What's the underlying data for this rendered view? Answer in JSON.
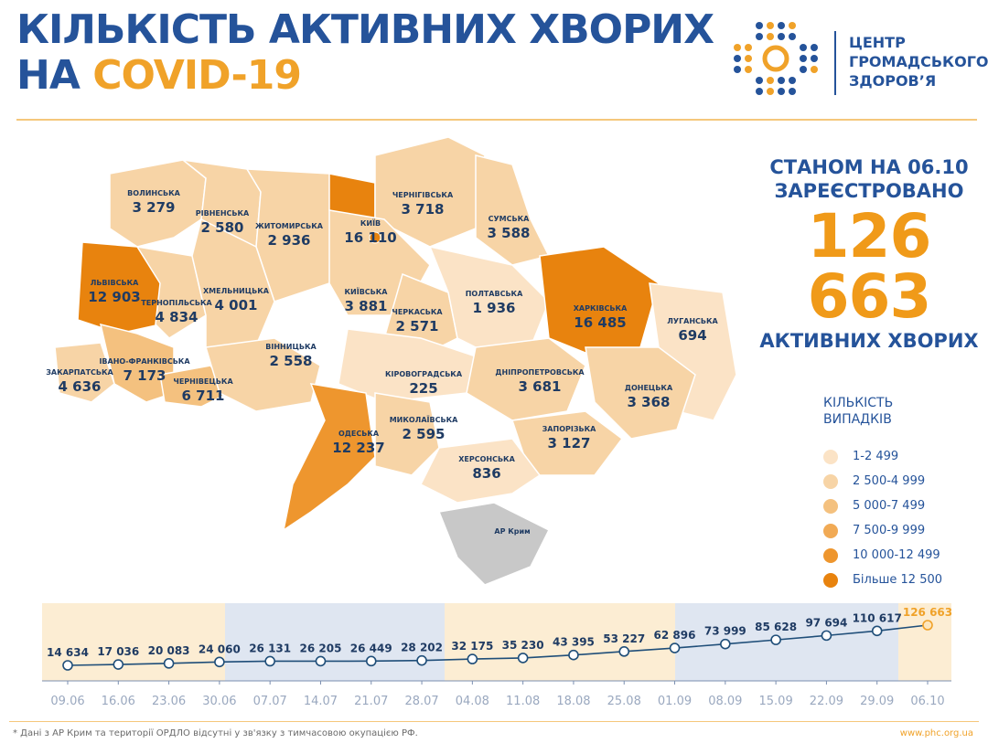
{
  "header": {
    "title_line1": "КІЛЬКІСТЬ АКТИВНИХ ХВОРИХ",
    "title_line2_prefix": "НА ",
    "title_line2_highlight": "COVID-19"
  },
  "logo": {
    "line1": "ЦЕНТР",
    "line2": "ГРОМАДСЬКОГО",
    "line3": "ЗДОРОВ’Я"
  },
  "summary": {
    "line1": "СТАНОМ НА 06.10",
    "line2": "ЗАРЕЄСТРОВАНО",
    "number": "126 663",
    "line3": "АКТИВНИХ ХВОРИХ"
  },
  "legend": {
    "title_line1": "КІЛЬКІСТЬ",
    "title_line2": "ВИПАДКІВ",
    "items": [
      {
        "label": "1-2 499",
        "color": "#fbe3c6"
      },
      {
        "label": "2 500-4 999",
        "color": "#f7d4a6"
      },
      {
        "label": "5 000-7 499",
        "color": "#f4c17f"
      },
      {
        "label": "7 500-9 999",
        "color": "#f1aa55"
      },
      {
        "label": "10 000-12 499",
        "color": "#ee962e"
      },
      {
        "label": "Більше 12 500",
        "color": "#e8830e"
      }
    ]
  },
  "regions": [
    {
      "name": "ВОЛИНСЬКА",
      "value": "3 279",
      "color": "#f7d4a6"
    },
    {
      "name": "РІВНЕНСЬКА",
      "value": "2 580",
      "color": "#f7d4a6"
    },
    {
      "name": "ЖИТОМИРСЬКА",
      "value": "2 936",
      "color": "#f7d4a6"
    },
    {
      "name": "КИЇВ",
      "value": "16 110",
      "color": "#e8830e"
    },
    {
      "name": "ЧЕРНІГІВСЬКА",
      "value": "3 718",
      "color": "#f7d4a6"
    },
    {
      "name": "СУМСЬКА",
      "value": "3 588",
      "color": "#f7d4a6"
    },
    {
      "name": "ЛЬВІВСЬКА",
      "value": "12 903",
      "color": "#e8830e"
    },
    {
      "name": "ТЕРНОПІЛЬСЬКА",
      "value": "4 834",
      "color": "#f7d4a6"
    },
    {
      "name": "ХМЕЛЬНИЦЬКА",
      "value": "4 001",
      "color": "#f7d4a6"
    },
    {
      "name": "КИЇВСЬКА",
      "value": "3 881",
      "color": "#f7d4a6"
    },
    {
      "name": "ЧЕРКАСЬКА",
      "value": "2 571",
      "color": "#f7d4a6"
    },
    {
      "name": "ПОЛТАВСЬКА",
      "value": "1 936",
      "color": "#fbe3c6"
    },
    {
      "name": "ХАРКІВСЬКА",
      "value": "16 485",
      "color": "#e8830e"
    },
    {
      "name": "ЛУГАНСЬКА",
      "value": "694",
      "color": "#fbe3c6"
    },
    {
      "name": "ІВАНО-ФРАНКІВСЬКА",
      "value": "7 173",
      "color": "#f4c17f"
    },
    {
      "name": "ЗАКАРПАТСЬКА",
      "value": "4 636",
      "color": "#f7d4a6"
    },
    {
      "name": "ЧЕРНІВЕЦЬКА",
      "value": "6 711",
      "color": "#f4c17f"
    },
    {
      "name": "ВІННИЦЬКА",
      "value": "2 558",
      "color": "#f7d4a6"
    },
    {
      "name": "КІРОВОГРАДСЬКА",
      "value": "225",
      "color": "#fbe3c6"
    },
    {
      "name": "ДНІПРОПЕТРОВСЬКА",
      "value": "3 681",
      "color": "#f7d4a6"
    },
    {
      "name": "ДОНЕЦЬКА",
      "value": "3 368",
      "color": "#f7d4a6"
    },
    {
      "name": "ОДЕСЬКА",
      "value": "12 237",
      "color": "#ee962e"
    },
    {
      "name": "МИКОЛАЇВСЬКА",
      "value": "2 595",
      "color": "#f7d4a6"
    },
    {
      "name": "ЗАПОРІЗЬКА",
      "value": "3 127",
      "color": "#f7d4a6"
    },
    {
      "name": "ХЕРСОНСЬКА",
      "value": "836",
      "color": "#fbe3c6"
    },
    {
      "name": "АР Крим",
      "value": "",
      "color": "#c8c8c8"
    }
  ],
  "timeline": {
    "dates": [
      "09.06",
      "16.06",
      "23.06",
      "30.06",
      "07.07",
      "14.07",
      "21.07",
      "28.07",
      "04.08",
      "11.08",
      "18.08",
      "25.08",
      "01.09",
      "08.09",
      "15.09",
      "22.09",
      "29.09",
      "06.10"
    ],
    "values": [
      14634,
      17036,
      20083,
      24060,
      26131,
      26205,
      26449,
      28202,
      32175,
      35230,
      43395,
      53227,
      62896,
      73999,
      85628,
      97694,
      110617,
      126663
    ],
    "labels": [
      "14 634",
      "17 036",
      "20 083",
      "24 060",
      "26 131",
      "26 205",
      "26 449",
      "28 202",
      "32 175",
      "35 230",
      "43 395",
      "53 227",
      "62 896",
      "73 999",
      "85 628",
      "97 694",
      "110 617",
      "126 663"
    ],
    "line_color": "#1f4e79",
    "highlight_color": "#f0a229"
  },
  "footer": {
    "footnote": "* Дані з АР Крим та території ОРДЛО відсутні у зв'язку з тимчасовою окупацією РФ.",
    "url": "www.phc.org.ua"
  }
}
